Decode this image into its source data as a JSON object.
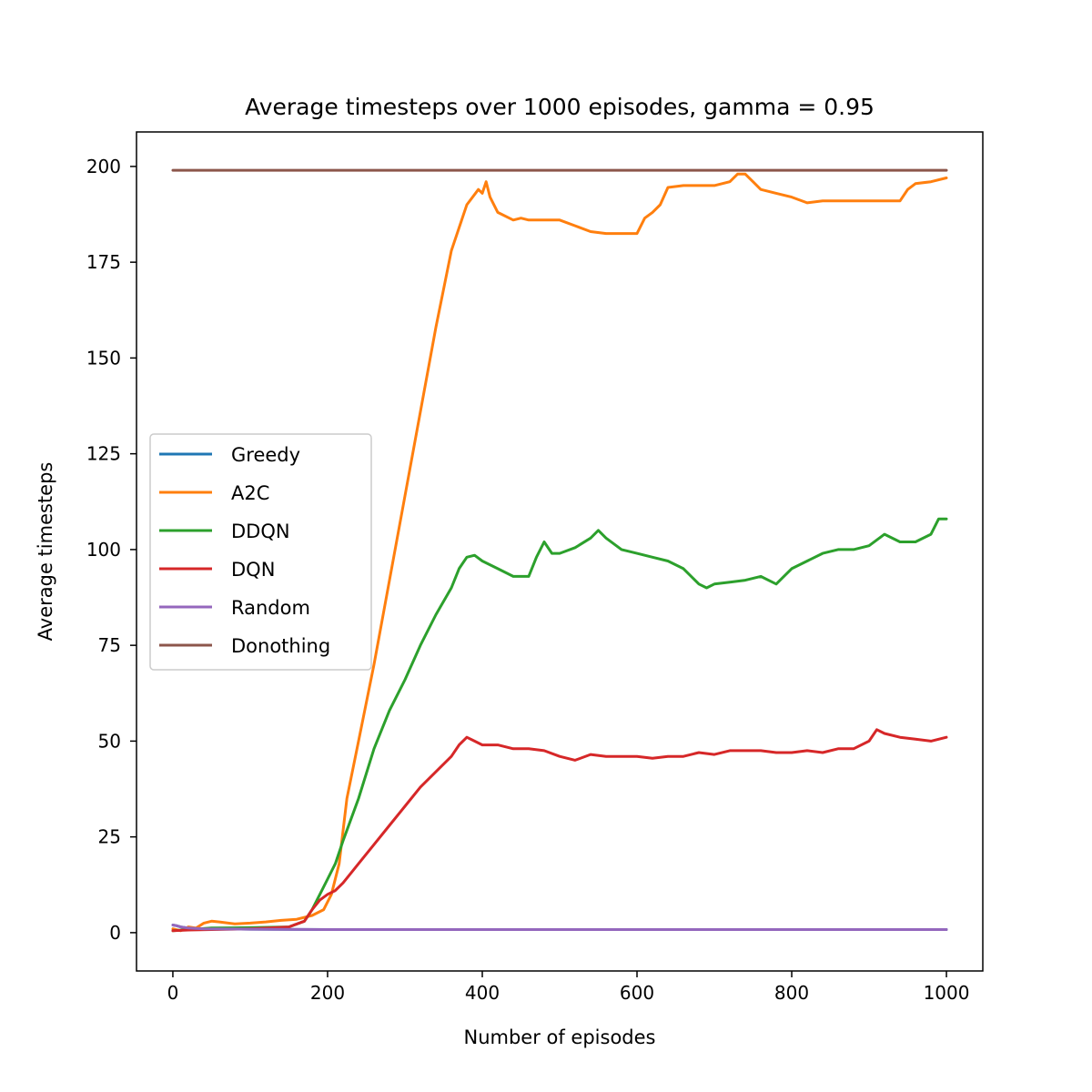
{
  "chart_data": {
    "type": "line",
    "title": "Average timesteps over 1000 episodes, gamma = 0.95",
    "xlabel": "Number of episodes",
    "ylabel": "Average timesteps",
    "xlim": [
      -47,
      1047
    ],
    "ylim": [
      -10,
      209
    ],
    "xticks": [
      0,
      200,
      400,
      600,
      800,
      1000
    ],
    "yticks": [
      0,
      25,
      50,
      75,
      100,
      125,
      150,
      175,
      200
    ],
    "grid": false,
    "legend_position": "center-left",
    "series": [
      {
        "name": "Greedy",
        "color": "#1f77b4",
        "x": [
          0,
          5,
          10,
          20,
          40,
          100,
          200,
          400,
          600,
          800,
          1000
        ],
        "y": [
          2,
          1.8,
          1.5,
          1.2,
          1,
          0.9,
          0.8,
          0.8,
          0.8,
          0.8,
          0.8
        ]
      },
      {
        "name": "A2C",
        "color": "#ff7f0e",
        "x": [
          0,
          10,
          20,
          30,
          40,
          50,
          60,
          80,
          100,
          120,
          140,
          160,
          180,
          195,
          205,
          215,
          225,
          240,
          260,
          280,
          300,
          320,
          340,
          360,
          380,
          395,
          400,
          405,
          410,
          420,
          440,
          450,
          460,
          480,
          500,
          520,
          540,
          560,
          580,
          600,
          610,
          620,
          630,
          640,
          660,
          680,
          700,
          720,
          730,
          740,
          750,
          760,
          780,
          800,
          820,
          840,
          860,
          880,
          900,
          920,
          940,
          950,
          960,
          980,
          1000
        ],
        "y": [
          1,
          0.5,
          1.5,
          1.2,
          2.5,
          3,
          2.8,
          2.3,
          2.5,
          2.8,
          3.2,
          3.5,
          4.5,
          6,
          10,
          18,
          35,
          50,
          70,
          92,
          114,
          136,
          158,
          178,
          190,
          194,
          193,
          196,
          192,
          188,
          186,
          186.5,
          186,
          186,
          186,
          184.5,
          183,
          182.5,
          182.5,
          182.5,
          186.5,
          188,
          190,
          194.5,
          195,
          195,
          195,
          196,
          198,
          198,
          196,
          194,
          193,
          192,
          190.5,
          191,
          191,
          191,
          191,
          191,
          191,
          194,
          195.5,
          196,
          197
        ]
      },
      {
        "name": "DDQN",
        "color": "#2ca02c",
        "x": [
          0,
          20,
          50,
          100,
          150,
          170,
          180,
          190,
          200,
          210,
          220,
          240,
          260,
          280,
          300,
          320,
          340,
          360,
          370,
          380,
          390,
          400,
          420,
          440,
          460,
          470,
          480,
          490,
          500,
          520,
          540,
          550,
          560,
          580,
          600,
          620,
          640,
          660,
          680,
          690,
          700,
          720,
          740,
          760,
          780,
          800,
          820,
          840,
          860,
          880,
          900,
          920,
          940,
          960,
          980,
          990,
          1000
        ],
        "y": [
          0.5,
          0.8,
          1.2,
          1.3,
          1.5,
          3,
          6,
          10,
          14,
          18,
          24,
          35,
          48,
          58,
          66,
          75,
          83,
          90,
          95,
          98,
          98.5,
          97,
          95,
          93,
          93,
          98,
          102,
          99,
          99,
          100.5,
          103,
          105,
          103,
          100,
          99,
          98,
          97,
          95,
          91,
          90,
          91,
          91.5,
          92,
          93,
          91,
          95,
          97,
          99,
          100,
          100,
          101,
          104,
          102,
          102,
          104,
          108,
          108
        ]
      },
      {
        "name": "DQN",
        "color": "#d62728",
        "x": [
          0,
          20,
          50,
          100,
          150,
          170,
          180,
          190,
          200,
          210,
          220,
          240,
          260,
          280,
          300,
          320,
          340,
          360,
          370,
          380,
          390,
          400,
          420,
          440,
          460,
          480,
          500,
          520,
          540,
          560,
          580,
          600,
          620,
          640,
          660,
          680,
          700,
          720,
          740,
          760,
          780,
          800,
          820,
          840,
          860,
          880,
          900,
          910,
          920,
          940,
          960,
          980,
          1000
        ],
        "y": [
          0.5,
          0.7,
          0.8,
          1,
          1.5,
          3,
          6,
          8.5,
          10,
          11,
          13,
          18,
          23,
          28,
          33,
          38,
          42,
          46,
          49,
          51,
          50,
          49,
          49,
          48,
          48,
          47.5,
          46,
          45,
          46.5,
          46,
          46,
          46,
          45.5,
          46,
          46,
          47,
          46.5,
          47.5,
          47.5,
          47.5,
          47,
          47,
          47.5,
          47,
          48,
          48,
          50,
          53,
          52,
          51,
          50.5,
          50,
          51
        ]
      },
      {
        "name": "Random",
        "color": "#9467bd",
        "x": [
          0,
          5,
          10,
          20,
          40,
          100,
          200,
          400,
          600,
          800,
          1000
        ],
        "y": [
          2,
          1.8,
          1.5,
          1.2,
          1,
          0.9,
          0.8,
          0.8,
          0.8,
          0.8,
          0.8
        ]
      },
      {
        "name": "Donothing",
        "color": "#8c564b",
        "x": [
          0,
          1000
        ],
        "y": [
          199,
          199
        ]
      }
    ]
  }
}
